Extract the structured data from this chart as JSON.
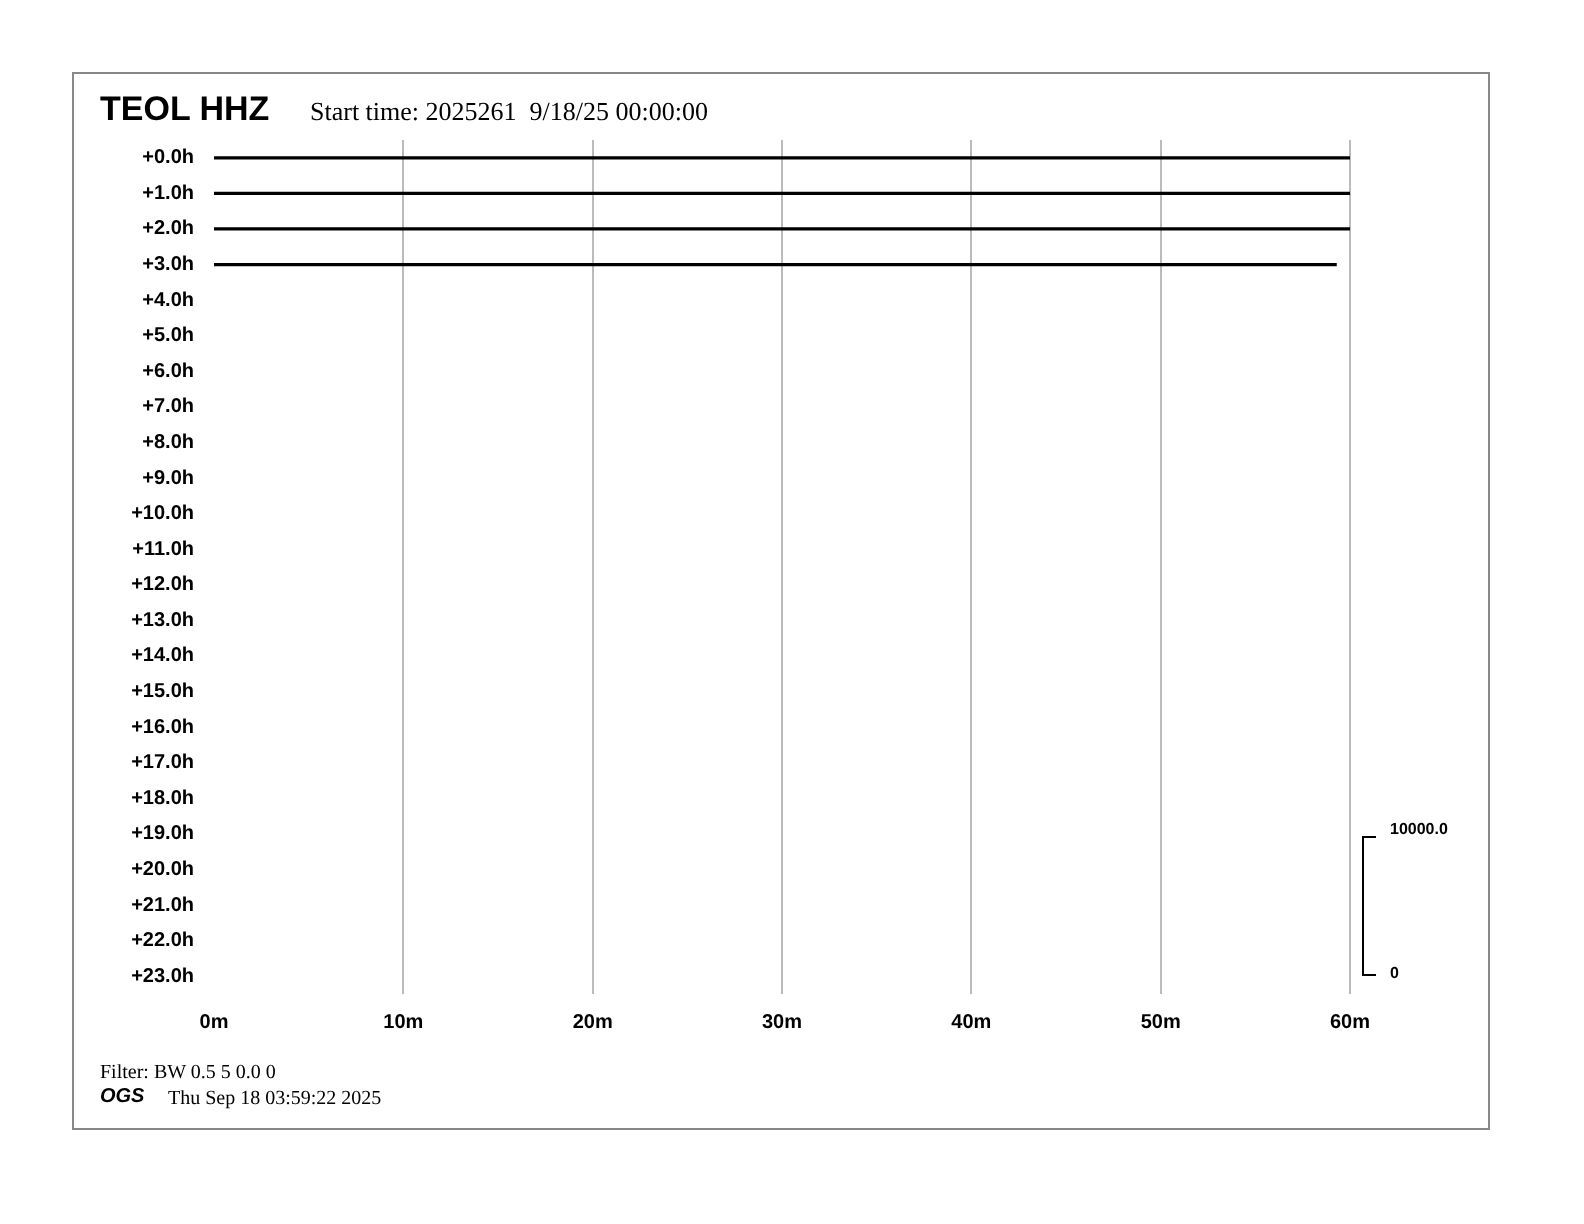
{
  "chart_data": {
    "type": "line",
    "title": "TEOL HHZ",
    "subtitle": "Start time: 2025261  9/18/25 00:00:00",
    "series": [
      {
        "color": "#000000",
        "x": [
          0,
          60
        ],
        "values": [
          0,
          0
        ]
      },
      {
        "color": "#000000",
        "x": [
          0,
          60
        ],
        "values": [
          -1,
          -1
        ]
      },
      {
        "color": "#000000",
        "x": [
          0,
          60
        ],
        "values": [
          -2,
          -2
        ]
      },
      {
        "color": "#000000",
        "x": [
          0,
          59.3
        ],
        "values": [
          -3,
          -3
        ]
      }
    ],
    "xlim": [
      0,
      60
    ],
    "xticks": [
      {
        "value": 0,
        "label": "0m"
      },
      {
        "value": 10,
        "label": "10m"
      },
      {
        "value": 20,
        "label": "20m"
      },
      {
        "value": 30,
        "label": "30m"
      },
      {
        "value": 40,
        "label": "40m"
      },
      {
        "value": 50,
        "label": "50m"
      },
      {
        "value": 60,
        "label": "60m"
      }
    ],
    "ylim": [
      -23.5,
      0.5
    ],
    "yticks": [
      {
        "value": 0,
        "label": "+0.0h"
      },
      {
        "value": -1,
        "label": "+1.0h"
      },
      {
        "value": -2,
        "label": "+2.0h"
      },
      {
        "value": -3,
        "label": "+3.0h"
      },
      {
        "value": -4,
        "label": "+4.0h"
      },
      {
        "value": -5,
        "label": "+5.0h"
      },
      {
        "value": -6,
        "label": "+6.0h"
      },
      {
        "value": -7,
        "label": "+7.0h"
      },
      {
        "value": -8,
        "label": "+8.0h"
      },
      {
        "value": -9,
        "label": "+9.0h"
      },
      {
        "value": -10,
        "label": "+10.0h"
      },
      {
        "value": -11,
        "label": "+11.0h"
      },
      {
        "value": -12,
        "label": "+12.0h"
      },
      {
        "value": -13,
        "label": "+13.0h"
      },
      {
        "value": -14,
        "label": "+14.0h"
      },
      {
        "value": -15,
        "label": "+15.0h"
      },
      {
        "value": -16,
        "label": "+16.0h"
      },
      {
        "value": -17,
        "label": "+17.0h"
      },
      {
        "value": -18,
        "label": "+18.0h"
      },
      {
        "value": -19,
        "label": "+19.0h"
      },
      {
        "value": -20,
        "label": "+20.0h"
      },
      {
        "value": -21,
        "label": "+21.0h"
      },
      {
        "value": -22,
        "label": "+22.0h"
      },
      {
        "value": -23,
        "label": "+23.0h"
      }
    ],
    "grid": "x",
    "legend": false,
    "marker": "none",
    "line_style": "solid",
    "annotations": [
      "10000.0",
      "0",
      "Filter: BW 0.5 5 0.0 0",
      "OGS",
      "Thu Sep 18 03:59:22 2025"
    ]
  }
}
